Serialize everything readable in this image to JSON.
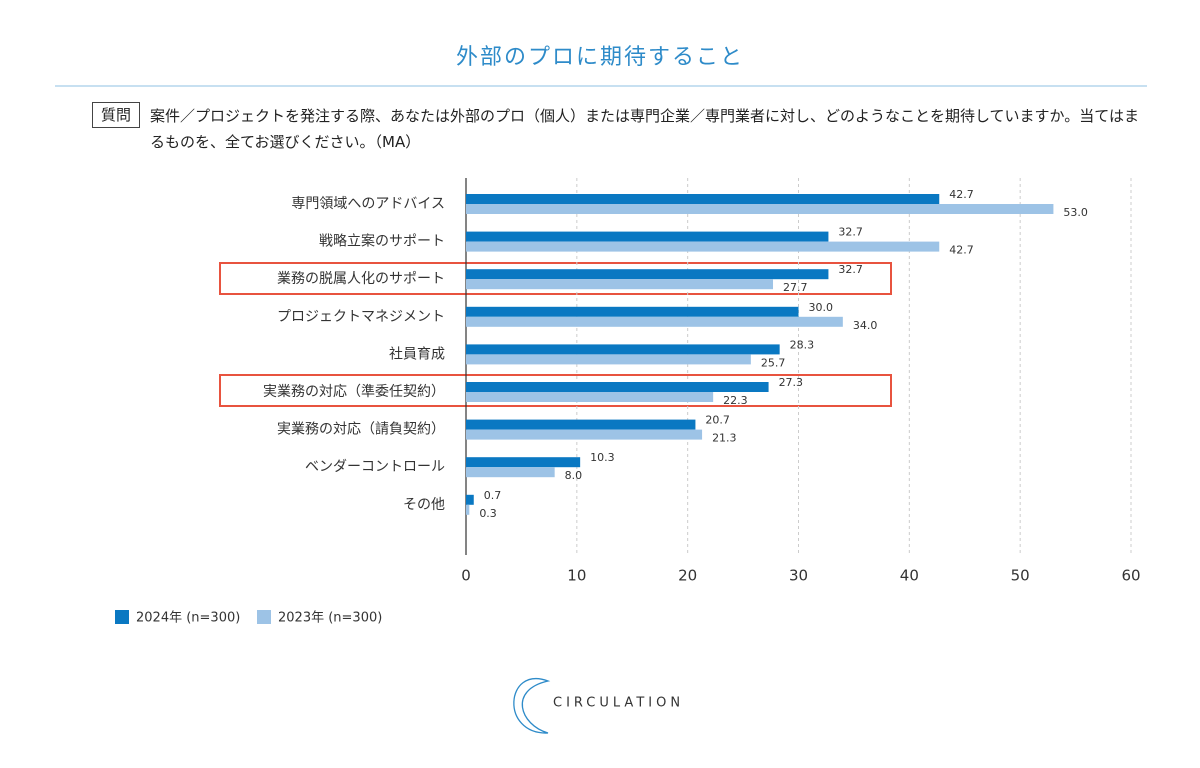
{
  "chart_data": {
    "type": "barh",
    "title": "外部のプロに期待すること",
    "question_label": "質問",
    "question": "案件／プロジェクトを発注する際、あなたは外部のプロ（個人）または専門企業／専門業者に対し、どのようなことを期待していますか。当てはまるものを、全てお選びください。（MA）",
    "categories": [
      "専門領域へのアドバイス",
      "戦略立案のサポート",
      "業務の脱属人化のサポート",
      "プロジェクトマネジメント",
      "社員育成",
      "実業務の対応（準委任契約）",
      "実業務の対応（請負契約）",
      "ベンダーコントロール",
      "その他"
    ],
    "series": [
      {
        "name": "2024年 (n=300)",
        "color": "#0a78c2",
        "values": [
          42.7,
          32.7,
          32.7,
          30.0,
          28.3,
          27.3,
          20.7,
          10.3,
          0.7
        ],
        "value_labels": [
          "42.7",
          "32.7",
          "32.7",
          "30.0",
          "28.3",
          "27.3",
          "20.7",
          "10.3",
          "0.7"
        ]
      },
      {
        "name": "2023年 (n=300)",
        "color": "#9dc3e6",
        "values": [
          53.0,
          42.7,
          27.7,
          34.0,
          25.7,
          22.3,
          21.3,
          8.0,
          0.3
        ],
        "value_labels": [
          "53.0",
          "42.7",
          "27.7",
          "34.0",
          "25.7",
          "22.3",
          "21.3",
          "8.0",
          "0.3"
        ]
      }
    ],
    "xlim": [
      0,
      60
    ],
    "xticks": [
      0,
      10,
      20,
      30,
      40,
      50,
      60
    ],
    "grid": true
  },
  "footer": {
    "logo": "CIRCULATION"
  }
}
